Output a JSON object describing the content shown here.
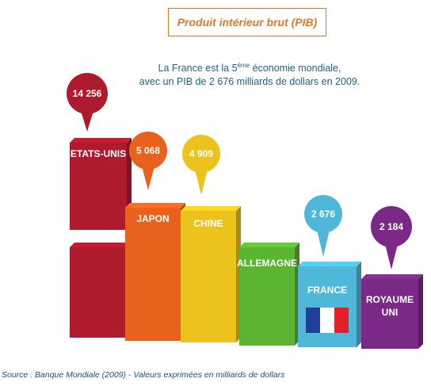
{
  "header": {
    "title": "Produit intérieur brut (PIB)",
    "subtitle_line1_pre": "La France est la 5",
    "subtitle_line1_sup": "ème",
    "subtitle_line1_post": " économie mondiale,",
    "subtitle_line2": "avec un PIB de 2 676 milliards de dollars en 2009."
  },
  "source": "Source : Banque Mondiale (2009) - Valeurs exprimées en milliards de dollars",
  "chart_data": {
    "type": "bar",
    "title": "Produit intérieur brut (PIB)",
    "categories": [
      "ETATS-UNIS",
      "JAPON",
      "CHINE",
      "ALLEMAGNE",
      "FRANCE",
      "ROYAUME UNI"
    ],
    "values": [
      14256,
      5068,
      4909,
      null,
      2676,
      2184
    ],
    "value_labels": [
      "14 256",
      "5 068",
      "4 909",
      "",
      "2 676",
      "2 184"
    ],
    "colors": {
      "ETATS-UNIS": "#b01a2e",
      "JAPON": "#e8621e",
      "CHINE": "#ecc21c",
      "ALLEMAGNE": "#5cb531",
      "FRANCE": "#4fb8d8",
      "ROYAUME UNI": "#7a2a86"
    },
    "unit": "milliards de dollars",
    "grid": false,
    "legend": "none"
  }
}
